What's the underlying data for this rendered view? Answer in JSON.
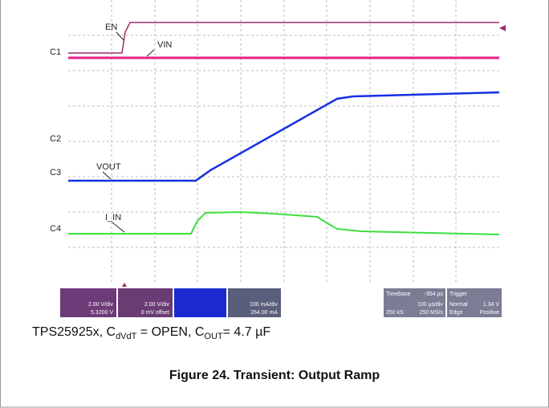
{
  "scope": {
    "channels": [
      "C1",
      "C2",
      "C3",
      "C4"
    ],
    "traces": [
      "EN",
      "VIN",
      "VOUT",
      "I_IN"
    ],
    "status": {
      "c1": [
        "2.00 V/div",
        "5.3200 V"
      ],
      "c2": [
        "2.00 V/div",
        "0 mV offset"
      ],
      "c4": [
        "100 mA/div",
        "264.00 mA"
      ],
      "timebase": [
        "Timebase",
        "-354 µs",
        "100 µs/div",
        "250 kS",
        "250 MS/s"
      ],
      "trigger": [
        "Trigger",
        "Normal",
        "1.34 V",
        "Edge",
        "Positive"
      ]
    }
  },
  "caption": [
    "TPS25925x, C",
    "dVdT",
    " = OPEN, C",
    "OUT",
    "= 4.7 µF"
  ],
  "figure_title": "Figure 24. Transient: Output Ramp"
}
